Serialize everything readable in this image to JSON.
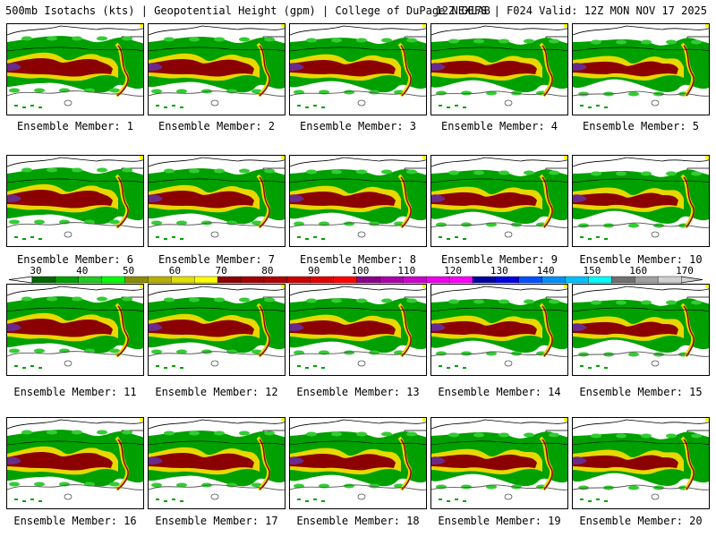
{
  "header": {
    "left": "500mb Isotachs (kts) | Geopotential Height (gpm) | College of DuPage NEXLAB",
    "right": "12Z GEFS | F024 Valid: 12Z MON NOV 17 2025"
  },
  "panel_label_prefix": "Ensemble Member:",
  "members": [
    {
      "label": "Ensemble Member: 1"
    },
    {
      "label": "Ensemble Member: 2"
    },
    {
      "label": "Ensemble Member: 3"
    },
    {
      "label": "Ensemble Member: 4"
    },
    {
      "label": "Ensemble Member: 5"
    },
    {
      "label": "Ensemble Member: 6"
    },
    {
      "label": "Ensemble Member: 7"
    },
    {
      "label": "Ensemble Member: 8"
    },
    {
      "label": "Ensemble Member: 9"
    },
    {
      "label": "Ensemble Member: 10"
    },
    {
      "label": "Ensemble Member: 11"
    },
    {
      "label": "Ensemble Member: 12"
    },
    {
      "label": "Ensemble Member: 13"
    },
    {
      "label": "Ensemble Member: 14"
    },
    {
      "label": "Ensemble Member: 15"
    },
    {
      "label": "Ensemble Member: 16"
    },
    {
      "label": "Ensemble Member: 17"
    },
    {
      "label": "Ensemble Member: 18"
    },
    {
      "label": "Ensemble Member: 19"
    },
    {
      "label": "Ensemble Member: 20"
    }
  ],
  "colorbar": {
    "ticks": [
      "30",
      "40",
      "50",
      "60",
      "70",
      "80",
      "90",
      "100",
      "110",
      "120",
      "130",
      "140",
      "150",
      "160",
      "170"
    ],
    "colors": [
      "#006600",
      "#00a000",
      "#20cc20",
      "#00ff00",
      "#8b8b00",
      "#b8b000",
      "#e0e000",
      "#ffff00",
      "#8b0000",
      "#a00000",
      "#b00000",
      "#c80000",
      "#e00000",
      "#ff0000",
      "#880088",
      "#aa00aa",
      "#cc00cc",
      "#ee00ee",
      "#ff00ff",
      "#0000a0",
      "#0000e0",
      "#0050ff",
      "#0090ff",
      "#00c0ff",
      "#00ffff",
      "#707070",
      "#a0a0a0",
      "#d0d0d0"
    ]
  },
  "field_colors": {
    "green": "#00a000",
    "light_green": "#33cc33",
    "yellow": "#e8d800",
    "dark_red": "#8b0000",
    "purple": "#6a2a8a",
    "contour": "#555555",
    "coast": "#000000"
  }
}
